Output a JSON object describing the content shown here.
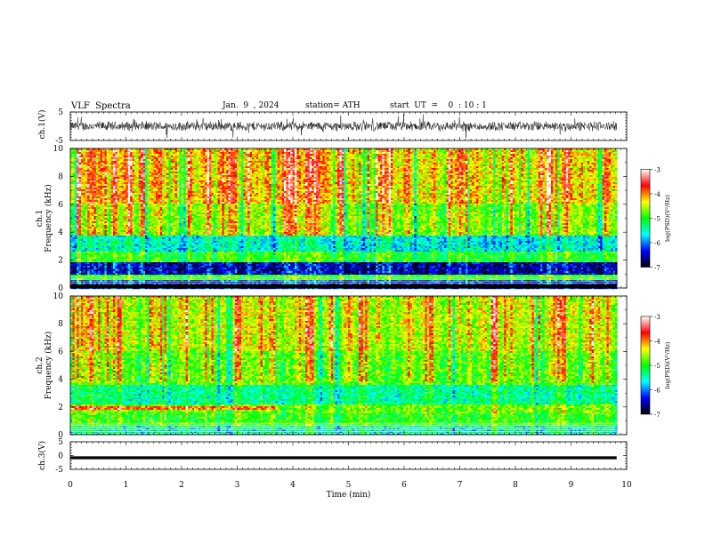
{
  "header": {
    "title": "VLF  Spectra",
    "date": "Jan.  9  , 2024",
    "station": "station= ATH",
    "start": "start  UT  =    0  : 10 : 1"
  },
  "chart_data": [
    {
      "type": "line",
      "name": "ch1-waveform",
      "ylabel": "ch.1(V)",
      "ylim": [
        -5,
        5
      ],
      "yticks": [
        "5",
        "-5"
      ],
      "xlim": [
        0,
        10
      ],
      "data_x_end": 9.82,
      "amplitude_V": 1.6
    },
    {
      "type": "heatmap",
      "name": "ch1-spectrogram",
      "ylabel_top": "ch.1",
      "ylabel": "Frequency  (kHz)",
      "ylim": [
        0,
        10
      ],
      "yticks": [
        "0",
        "2",
        "4",
        "6",
        "8",
        "10"
      ],
      "xlim": [
        0,
        10
      ],
      "colorbar": {
        "label": "log(PSD)(V²/Hz)",
        "ticks": [
          "-3",
          "-4",
          "-5",
          "-6",
          "-7"
        ],
        "range": [
          -7,
          -3
        ]
      },
      "bands": [
        {
          "f": [
            0.0,
            0.6
          ],
          "level": -6.3
        },
        {
          "f": [
            0.6,
            1.0
          ],
          "level": -5.0
        },
        {
          "f": [
            1.0,
            1.8
          ],
          "level": -6.5
        },
        {
          "f": [
            1.8,
            2.6
          ],
          "level": -5.0
        },
        {
          "f": [
            2.6,
            3.8
          ],
          "level": -5.6
        },
        {
          "f": [
            3.8,
            6.0
          ],
          "level": -4.6
        },
        {
          "f": [
            6.0,
            10.0
          ],
          "level": -4.2
        }
      ]
    },
    {
      "type": "heatmap",
      "name": "ch2-spectrogram",
      "ylabel_top": "ch.2",
      "ylabel": "Frequency  (kHz)",
      "ylim": [
        0,
        10
      ],
      "yticks": [
        "0",
        "2",
        "4",
        "6",
        "8",
        "10"
      ],
      "xlim": [
        0,
        10
      ],
      "colorbar": {
        "label": "log(PSD)(V²/Hz)",
        "ticks": [
          "-3",
          "-4",
          "-5",
          "-6",
          "-7"
        ],
        "range": [
          -7,
          -3
        ]
      },
      "bands": [
        {
          "f": [
            0.0,
            0.6
          ],
          "level": -5.6
        },
        {
          "f": [
            0.6,
            1.5
          ],
          "level": -5.0
        },
        {
          "f": [
            1.5,
            2.2
          ],
          "level": -4.8
        },
        {
          "f": [
            2.2,
            3.6
          ],
          "level": -5.4
        },
        {
          "f": [
            3.6,
            6.0
          ],
          "level": -4.8
        },
        {
          "f": [
            6.0,
            10.0
          ],
          "level": -4.5
        }
      ]
    },
    {
      "type": "line",
      "name": "ch3-waveform",
      "ylabel": "ch.3(V)",
      "ylim": [
        -5,
        5
      ],
      "yticks": [
        "5",
        "0",
        "-5"
      ],
      "xlim": [
        0,
        10
      ],
      "xlabel": "Time  (min)",
      "xticks": [
        "0",
        "1",
        "2",
        "3",
        "4",
        "5",
        "6",
        "7",
        "8",
        "9",
        "10"
      ],
      "constant_value_V": -0.8
    }
  ],
  "colors": {
    "colorbar_stops": [
      "#000000",
      "#0000ff",
      "#00ffff",
      "#00ff00",
      "#ffff00",
      "#ff0000",
      "#ffffff"
    ]
  }
}
